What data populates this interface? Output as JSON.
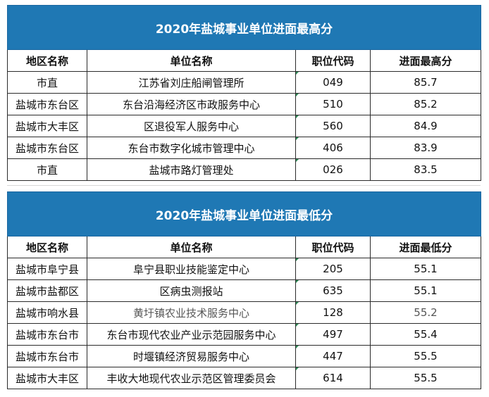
{
  "table_high": {
    "title": "2020年盐城事业单位进面最高分",
    "headers": [
      "地区名称",
      "单位名称",
      "职位代码",
      "进面最高分"
    ],
    "rows": [
      [
        "市直",
        "江苏省刘庄船闸管理所",
        "049",
        "85.7"
      ],
      [
        "盐城市东台区",
        "东台沿海经济区市政服务中心",
        "510",
        "85.2"
      ],
      [
        "盐城市大丰区",
        "区退役军人服务中心",
        "560",
        "84.9"
      ],
      [
        "盐城市东台区",
        "东台市数字化城市管理中心",
        "406",
        "83.9"
      ],
      [
        "市直",
        "盐城市路灯管理处",
        "026",
        "83.5"
      ]
    ]
  },
  "table_low": {
    "title": "2020年盐城事业单位进面最低分",
    "headers": [
      "地区名称",
      "单位名称",
      "职位代码",
      "进面最低分"
    ],
    "rows": [
      [
        "盐城市阜宁县",
        "阜宁县职业技能鉴定中心",
        "205",
        "55.1"
      ],
      [
        "盐城市盐都区",
        "区病虫测报站",
        "635",
        "55.1"
      ],
      [
        "盐城市响水县",
        "黄圩镇农业技术服务中心",
        "128",
        "55.2"
      ],
      [
        "盐城市东台市",
        "东台市现代农业产业示范园服务中心",
        "497",
        "55.4"
      ],
      [
        "盐城市东台市",
        "时堰镇经济贸易服务中心",
        "447",
        "55.5"
      ],
      [
        "盐城市大丰区",
        "丰收大地现代农业示范区管理委员会",
        "614",
        "55.5"
      ]
    ]
  }
}
